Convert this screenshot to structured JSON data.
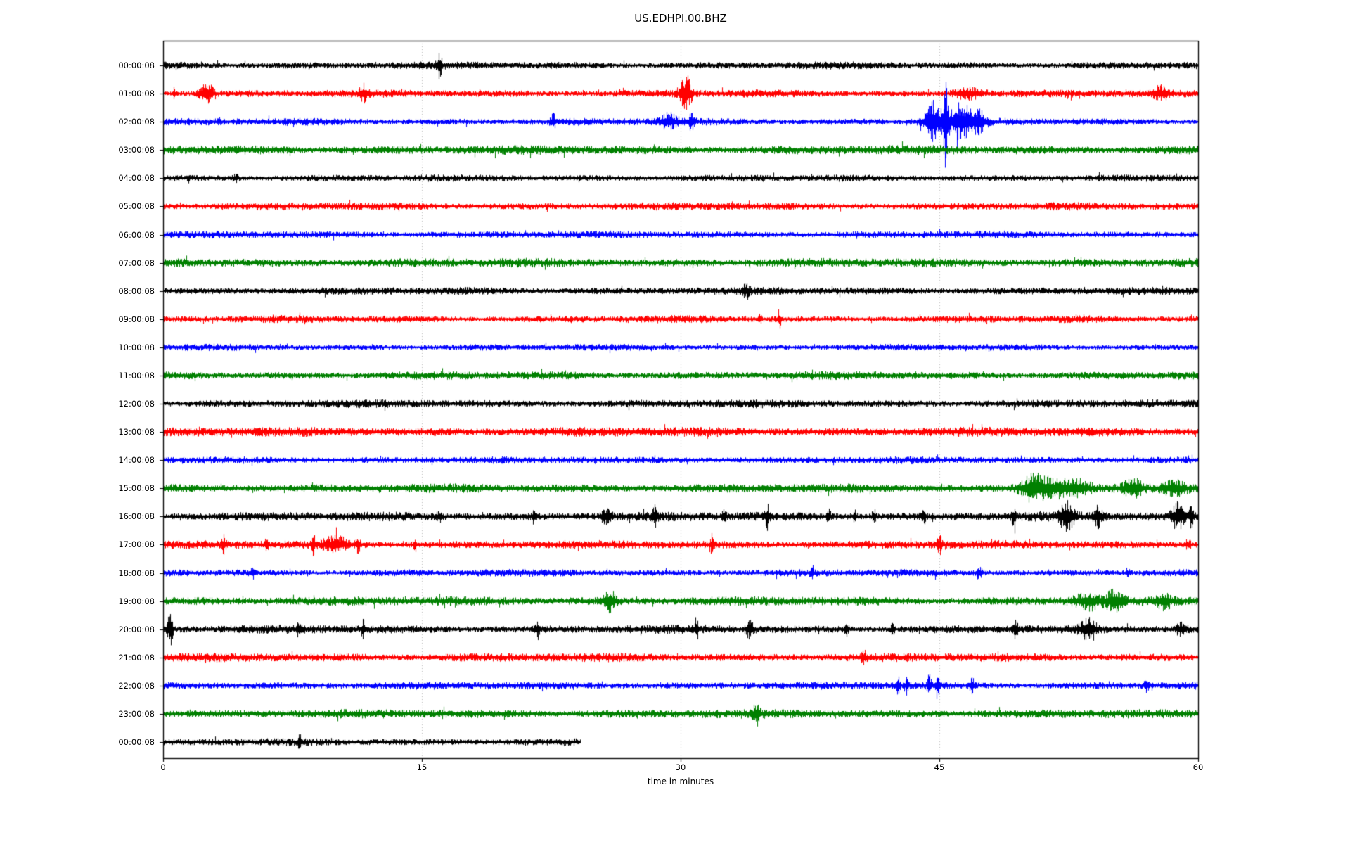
{
  "chart_data": {
    "type": "line",
    "subtype": "seismogram-helicorder",
    "title": "US.EDHPI.00.BHZ",
    "xlabel": "time in minutes",
    "ylabel": "",
    "xlim": [
      0,
      60
    ],
    "x_ticks": [
      0,
      15,
      30,
      45,
      60
    ],
    "grid": "vertical dotted gridlines at 15, 30, 45",
    "legend": "none",
    "trace_color_cycle": [
      "#000000",
      "#ff0000",
      "#0000ff",
      "#008000"
    ],
    "rows": [
      {
        "label": "00:00:08",
        "color": "#000000",
        "end_min": 60,
        "base": 1.0,
        "events": [
          [
            16.0,
            2.8,
            0.1
          ]
        ]
      },
      {
        "label": "01:00:08",
        "color": "#ff0000",
        "end_min": 60,
        "base": 1.05,
        "events": [
          [
            0.6,
            2.2,
            0.05
          ],
          [
            2.5,
            3.5,
            0.25
          ],
          [
            11.6,
            1.6,
            0.15
          ],
          [
            30.3,
            4.5,
            0.22
          ],
          [
            46.6,
            1.8,
            0.5
          ],
          [
            57.8,
            1.4,
            0.3
          ]
        ]
      },
      {
        "label": "02:00:08",
        "color": "#0000ff",
        "end_min": 60,
        "base": 1.0,
        "events": [
          [
            22.6,
            2.2,
            0.1
          ],
          [
            29.3,
            2.0,
            0.35
          ],
          [
            30.6,
            2.5,
            0.1
          ],
          [
            44.6,
            6.0,
            0.35
          ],
          [
            45.35,
            11.0,
            0.1
          ],
          [
            46.2,
            4.0,
            0.5
          ],
          [
            47.3,
            2.0,
            0.3
          ]
        ]
      },
      {
        "label": "03:00:08",
        "color": "#008000",
        "end_min": 60,
        "base": 1.25,
        "events": []
      },
      {
        "label": "04:00:08",
        "color": "#000000",
        "end_min": 60,
        "base": 0.95,
        "events": [
          [
            4.2,
            1.2,
            0.12
          ]
        ]
      },
      {
        "label": "05:00:08",
        "color": "#ff0000",
        "end_min": 60,
        "base": 1.05,
        "events": []
      },
      {
        "label": "06:00:08",
        "color": "#0000ff",
        "end_min": 60,
        "base": 1.0,
        "events": []
      },
      {
        "label": "07:00:08",
        "color": "#008000",
        "end_min": 60,
        "base": 1.25,
        "events": []
      },
      {
        "label": "08:00:08",
        "color": "#000000",
        "end_min": 60,
        "base": 1.05,
        "events": [
          [
            33.8,
            1.2,
            0.15
          ]
        ]
      },
      {
        "label": "09:00:08",
        "color": "#ff0000",
        "end_min": 60,
        "base": 1.0,
        "events": [
          [
            34.6,
            1.2,
            0.07
          ],
          [
            35.7,
            2.8,
            0.07
          ]
        ]
      },
      {
        "label": "10:00:08",
        "color": "#0000ff",
        "end_min": 60,
        "base": 0.9,
        "events": []
      },
      {
        "label": "11:00:08",
        "color": "#008000",
        "end_min": 60,
        "base": 1.1,
        "events": []
      },
      {
        "label": "12:00:08",
        "color": "#000000",
        "end_min": 60,
        "base": 1.1,
        "events": []
      },
      {
        "label": "13:00:08",
        "color": "#ff0000",
        "end_min": 60,
        "base": 1.3,
        "events": []
      },
      {
        "label": "14:00:08",
        "color": "#0000ff",
        "end_min": 60,
        "base": 1.0,
        "events": []
      },
      {
        "label": "15:00:08",
        "color": "#008000",
        "end_min": 60,
        "base": 1.2,
        "events": [
          [
            50.4,
            3.8,
            0.5
          ],
          [
            51.6,
            2.6,
            0.6
          ],
          [
            53.0,
            1.8,
            0.5
          ],
          [
            56.2,
            1.8,
            0.35
          ],
          [
            58.6,
            1.4,
            0.5
          ]
        ]
      },
      {
        "label": "16:00:08",
        "color": "#000000",
        "end_min": 60,
        "base": 1.25,
        "events": [
          [
            16.0,
            1.5,
            0.08
          ],
          [
            21.5,
            1.6,
            0.08
          ],
          [
            25.7,
            2.0,
            0.2
          ],
          [
            28.5,
            1.8,
            0.12
          ],
          [
            32.5,
            1.8,
            0.08
          ],
          [
            35.0,
            2.2,
            0.08
          ],
          [
            38.6,
            1.5,
            0.08
          ],
          [
            40.1,
            2.4,
            0.06
          ],
          [
            41.2,
            1.6,
            0.08
          ],
          [
            44.1,
            1.8,
            0.06
          ],
          [
            49.3,
            1.9,
            0.08
          ],
          [
            52.4,
            2.4,
            0.3
          ],
          [
            54.2,
            2.0,
            0.15
          ],
          [
            58.8,
            2.6,
            0.25
          ],
          [
            59.6,
            2.2,
            0.1
          ]
        ]
      },
      {
        "label": "17:00:08",
        "color": "#ff0000",
        "end_min": 60,
        "base": 1.15,
        "events": [
          [
            3.5,
            1.4,
            0.08
          ],
          [
            6.0,
            2.6,
            0.06
          ],
          [
            8.7,
            1.9,
            0.07
          ],
          [
            10.0,
            1.6,
            0.5
          ],
          [
            11.3,
            2.2,
            0.08
          ],
          [
            14.6,
            1.7,
            0.07
          ],
          [
            31.8,
            2.0,
            0.07
          ],
          [
            45.0,
            1.9,
            0.1
          ],
          [
            59.4,
            1.6,
            0.1
          ]
        ]
      },
      {
        "label": "18:00:08",
        "color": "#0000ff",
        "end_min": 60,
        "base": 1.0,
        "events": [
          [
            5.2,
            1.3,
            0.08
          ],
          [
            37.6,
            2.4,
            0.06
          ],
          [
            47.3,
            1.9,
            0.12
          ],
          [
            55.9,
            1.3,
            0.1
          ]
        ]
      },
      {
        "label": "19:00:08",
        "color": "#008000",
        "end_min": 60,
        "base": 1.25,
        "events": [
          [
            25.9,
            2.4,
            0.25
          ],
          [
            53.6,
            1.6,
            0.6
          ],
          [
            55.1,
            1.8,
            0.3
          ],
          [
            58.0,
            1.4,
            0.3
          ]
        ]
      },
      {
        "label": "20:00:08",
        "color": "#000000",
        "end_min": 60,
        "base": 1.15,
        "events": [
          [
            0.4,
            5.5,
            0.1
          ],
          [
            7.9,
            1.7,
            0.1
          ],
          [
            11.6,
            1.9,
            0.08
          ],
          [
            21.7,
            2.0,
            0.1
          ],
          [
            30.9,
            2.1,
            0.08
          ],
          [
            34.0,
            2.3,
            0.15
          ],
          [
            39.6,
            1.7,
            0.08
          ],
          [
            42.3,
            1.6,
            0.08
          ],
          [
            49.4,
            1.7,
            0.1
          ],
          [
            53.6,
            2.1,
            0.3
          ],
          [
            59.0,
            1.5,
            0.2
          ]
        ]
      },
      {
        "label": "21:00:08",
        "color": "#ff0000",
        "end_min": 60,
        "base": 1.2,
        "events": [
          [
            40.6,
            1.3,
            0.1
          ]
        ]
      },
      {
        "label": "22:00:08",
        "color": "#0000ff",
        "end_min": 60,
        "base": 1.05,
        "events": [
          [
            42.6,
            2.0,
            0.07
          ],
          [
            43.1,
            2.0,
            0.07
          ],
          [
            44.4,
            3.2,
            0.07
          ],
          [
            44.9,
            4.0,
            0.08
          ],
          [
            46.9,
            1.7,
            0.1
          ],
          [
            57.0,
            1.3,
            0.1
          ]
        ]
      },
      {
        "label": "23:00:08",
        "color": "#008000",
        "end_min": 60,
        "base": 1.2,
        "events": [
          [
            34.4,
            1.7,
            0.15
          ]
        ]
      },
      {
        "label": "00:00:08",
        "color": "#000000",
        "end_min": 24.2,
        "base": 1.0,
        "events": [
          [
            7.9,
            1.8,
            0.06
          ]
        ]
      }
    ]
  }
}
